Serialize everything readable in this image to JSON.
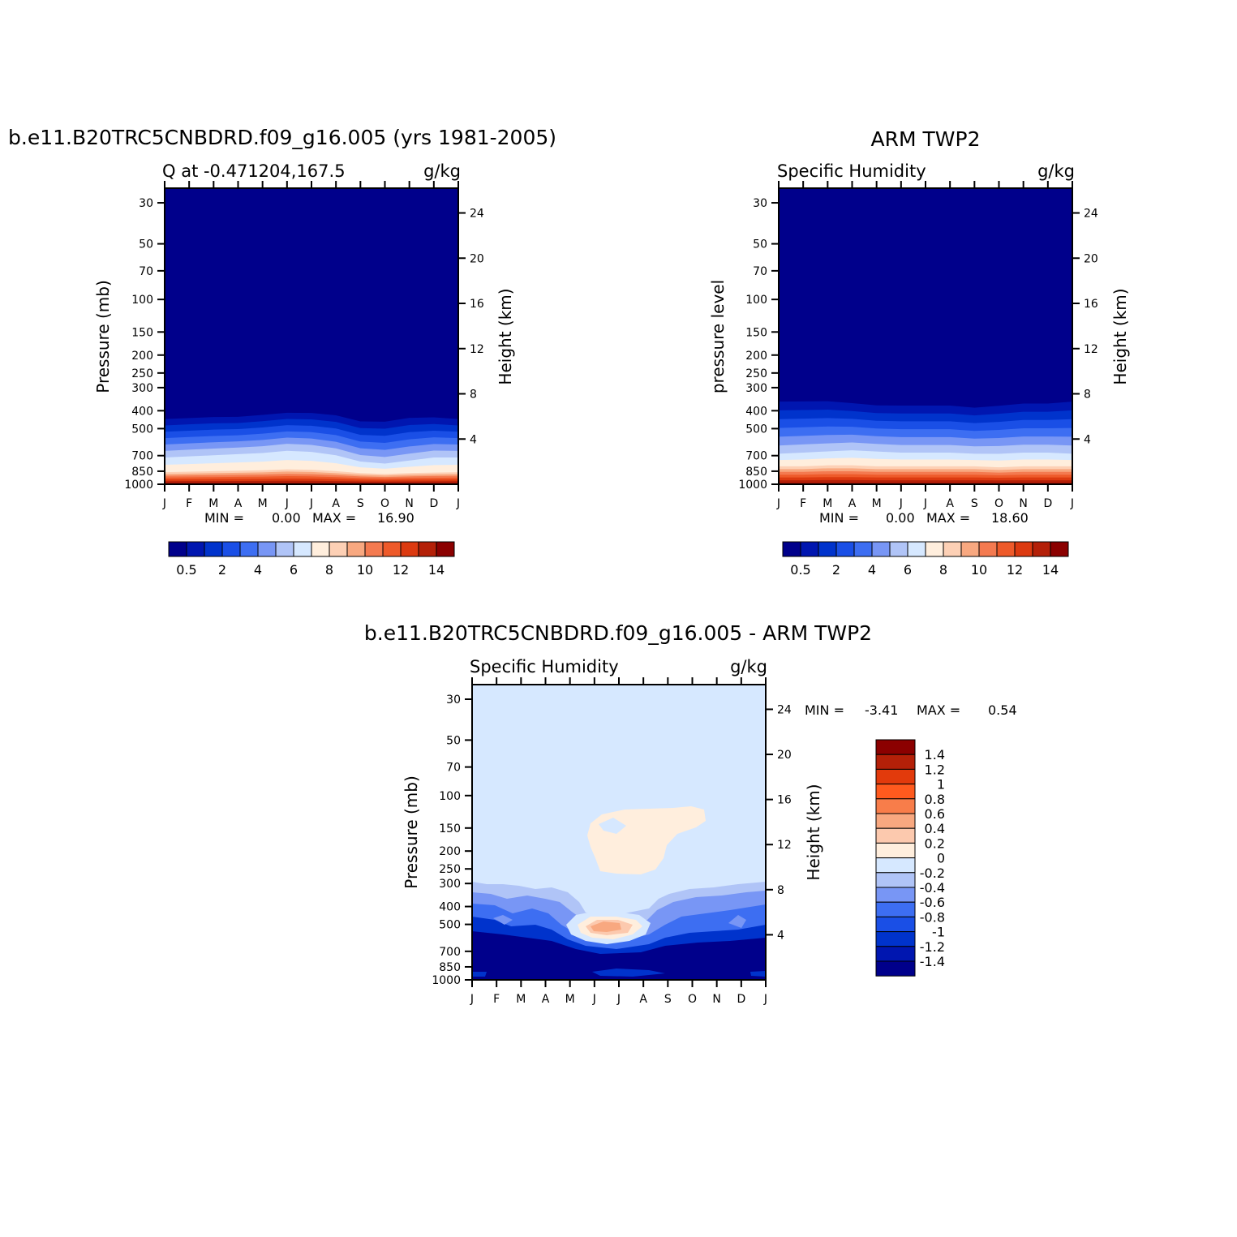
{
  "chart_data": [
    {
      "type": "heatmap",
      "id": "model",
      "title": "b.e11.B20TRC5CNBDRD.f09_g16.005 (yrs 1981-2005)",
      "subtitle_left": "Q at -0.471204,167.5",
      "subtitle_right": "g/kg",
      "ylabel": "Pressure (mb)",
      "ylabel_right": "Height (km)",
      "x_ticks": [
        "J",
        "F",
        "M",
        "A",
        "M",
        "J",
        "J",
        "A",
        "S",
        "O",
        "N",
        "D",
        "J"
      ],
      "y_ticks": [
        30,
        50,
        70,
        100,
        150,
        200,
        250,
        300,
        400,
        500,
        700,
        850,
        1000
      ],
      "y_ticks_right": [
        4,
        8,
        12,
        16,
        20,
        24
      ],
      "ylim": [
        1000,
        25
      ],
      "stats": {
        "min_label": "MIN =",
        "min": "0.00",
        "max_label": "MAX =",
        "max": "16.90"
      },
      "colorbar_labels": [
        "0.5",
        "2",
        "4",
        "6",
        "8",
        "10",
        "12",
        "14"
      ],
      "level_heights_hPa": {
        "top_of_moisture": [
          410,
          405,
          400,
          400,
          390,
          380,
          380,
          390,
          420,
          420,
          400,
          400,
          410
        ],
        "mid_moist": [
          700,
          690,
          680,
          670,
          660,
          640,
          650,
          680,
          740,
          760,
          730,
          700,
          700
        ],
        "surface_warm": [
          860,
          855,
          850,
          845,
          840,
          830,
          835,
          850,
          870,
          880,
          870,
          865,
          860
        ]
      }
    },
    {
      "type": "heatmap",
      "id": "obs",
      "title": "ARM TWP2",
      "subtitle_left": "Specific Humidity",
      "subtitle_right": "g/kg",
      "ylabel": "pressure level",
      "ylabel_right": "Height (km)",
      "x_ticks": [
        "J",
        "F",
        "M",
        "A",
        "M",
        "J",
        "J",
        "A",
        "S",
        "O",
        "N",
        "D",
        "J"
      ],
      "y_ticks": [
        30,
        50,
        70,
        100,
        150,
        200,
        250,
        300,
        400,
        500,
        700,
        850,
        1000
      ],
      "y_ticks_right": [
        4,
        8,
        12,
        16,
        20,
        24
      ],
      "ylim": [
        1000,
        25
      ],
      "stats": {
        "min_label": "MIN =",
        "min": "0.00",
        "max_label": "MAX =",
        "max": "18.60"
      },
      "colorbar_labels": [
        "0.5",
        "2",
        "4",
        "6",
        "8",
        "10",
        "12",
        "14"
      ],
      "level_heights_hPa": {
        "top_of_moisture": [
          320,
          320,
          320,
          330,
          340,
          340,
          340,
          340,
          350,
          340,
          330,
          330,
          320
        ],
        "mid_moist": [
          670,
          660,
          650,
          640,
          650,
          660,
          660,
          660,
          670,
          670,
          660,
          660,
          670
        ],
        "surface_warm": [
          800,
          800,
          790,
          790,
          800,
          800,
          800,
          800,
          800,
          810,
          800,
          800,
          800
        ]
      }
    },
    {
      "type": "heatmap",
      "id": "diff",
      "title": "b.e11.B20TRC5CNBDRD.f09_g16.005 - ARM TWP2",
      "subtitle_left": "Specific Humidity",
      "subtitle_right": "g/kg",
      "ylabel": "Pressure (mb)",
      "ylabel_right": "Height (km)",
      "x_ticks": [
        "J",
        "F",
        "M",
        "A",
        "M",
        "J",
        "J",
        "A",
        "S",
        "O",
        "N",
        "D",
        "J"
      ],
      "y_ticks": [
        30,
        50,
        70,
        100,
        150,
        200,
        250,
        300,
        400,
        500,
        700,
        850,
        1000
      ],
      "y_ticks_right": [
        4,
        8,
        12,
        16,
        20,
        24
      ],
      "ylim": [
        1000,
        25
      ],
      "stats": {
        "min_label": "MIN =",
        "min": "-3.41",
        "max_label": "MAX =",
        "max": "0.54"
      },
      "colorbar_labels": [
        "1.4",
        "1.2",
        "1",
        "0.8",
        "0.6",
        "0.4",
        "0.2",
        "0",
        "-0.2",
        "-0.4",
        "-0.6",
        "-0.8",
        "-1",
        "-1.2",
        "-1.4"
      ]
    }
  ],
  "colors": {
    "model_obs_scale": [
      "#00008b",
      "#0016b0",
      "#0033cc",
      "#1a4fe6",
      "#3d6ef2",
      "#7896f5",
      "#b0c4f7",
      "#d6e8ff",
      "#ffeedd",
      "#fdd0b5",
      "#f8a880",
      "#f47a50",
      "#ee5a2a",
      "#dc3a10",
      "#b42008",
      "#8b0000"
    ],
    "diff_scale": [
      "#8b0000",
      "#b42008",
      "#e23a0c",
      "#ff5a1e",
      "#f87d4a",
      "#f8a880",
      "#fcc9ae",
      "#ffeedd",
      "#d6e8ff",
      "#b0c4f7",
      "#7896f5",
      "#3d6ef2",
      "#1a4fe6",
      "#0033cc",
      "#0016b0",
      "#00008b"
    ],
    "diff_background": "#d6e8ff"
  }
}
